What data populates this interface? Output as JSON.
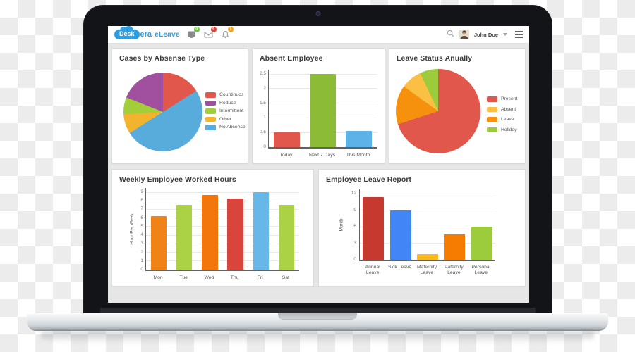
{
  "header": {
    "brand": {
      "cloud_text": "Desk",
      "name_rest": "era",
      "product": "eLeave"
    },
    "notifications": [
      {
        "icon": "monitor-icon",
        "count": "9",
        "color": "#70bf4a"
      },
      {
        "icon": "envelope-icon",
        "count": "5",
        "color": "#e8463c"
      },
      {
        "icon": "bell-icon",
        "count": "7",
        "color": "#f7a81b"
      }
    ],
    "user": {
      "name": "John Doe"
    },
    "brand_color": "#2b9fe2"
  },
  "chart_data": [
    {
      "type": "pie",
      "title": "Cases by Absense Type",
      "labels": [
        "Countinuos",
        "Reduce",
        "Intermittent",
        "Other",
        "No Absense"
      ],
      "values": [
        16,
        19,
        7,
        8,
        50
      ],
      "colors": [
        "#e2574c",
        "#a0509e",
        "#a2ce39",
        "#f3b32c",
        "#58acdc"
      ],
      "draw_order": [
        0,
        4,
        3,
        2,
        1
      ],
      "legend_position": "right",
      "unit": "percent"
    },
    {
      "type": "bar",
      "title": "Absent Employee",
      "categories": [
        "Today",
        "Next 7 Days",
        "This Month"
      ],
      "values": [
        0.5,
        2.5,
        0.55
      ],
      "bar_colors": [
        "#e2574c",
        "#8cbb36",
        "#5db3e8"
      ],
      "ylim": [
        0,
        2.5
      ],
      "yticks": [
        0,
        0.5,
        1,
        1.5,
        2,
        2.5
      ],
      "ylabel": "",
      "grid": true
    },
    {
      "type": "pie",
      "title": "Leave Status Anually",
      "labels": [
        "Present",
        "Absent",
        "Leave",
        "Holiday"
      ],
      "values": [
        70,
        8,
        15,
        7
      ],
      "colors": [
        "#e2574c",
        "#f9c043",
        "#f6910e",
        "#9ccc3c"
      ],
      "draw_order": [
        0,
        2,
        1,
        3
      ],
      "legend_position": "right",
      "unit": "percent"
    },
    {
      "type": "bar",
      "title": "Weekly Employee Worked Hours",
      "categories": [
        "Mon",
        "Tue",
        "Wed",
        "Thu",
        "Fri",
        "Sat"
      ],
      "values": [
        6.2,
        7.5,
        8.7,
        8.3,
        9,
        7.5
      ],
      "bar_colors": [
        "#ef8318",
        "#abd144",
        "#f2760b",
        "#d9453d",
        "#67b7e8",
        "#abd144"
      ],
      "ylim": [
        0,
        9
      ],
      "yticks": [
        0,
        1,
        2,
        3,
        4,
        5,
        6,
        7,
        8,
        9
      ],
      "ylabel": "Hour Per Week",
      "grid": true
    },
    {
      "type": "bar",
      "title": "Employee Leave Report",
      "categories": [
        "Annual Leave",
        "Sick Leave",
        "Maternity Leave",
        "Paternity Leave",
        "Personal Leave"
      ],
      "values": [
        11.3,
        9,
        1,
        4.6,
        6
      ],
      "bar_colors": [
        "#c6392f",
        "#4285f4",
        "#f9b91c",
        "#f57c00",
        "#9ccc3b"
      ],
      "ylim": [
        0,
        12
      ],
      "yticks": [
        0,
        3,
        6,
        9,
        12
      ],
      "ylabel": "Month",
      "grid": true
    }
  ]
}
